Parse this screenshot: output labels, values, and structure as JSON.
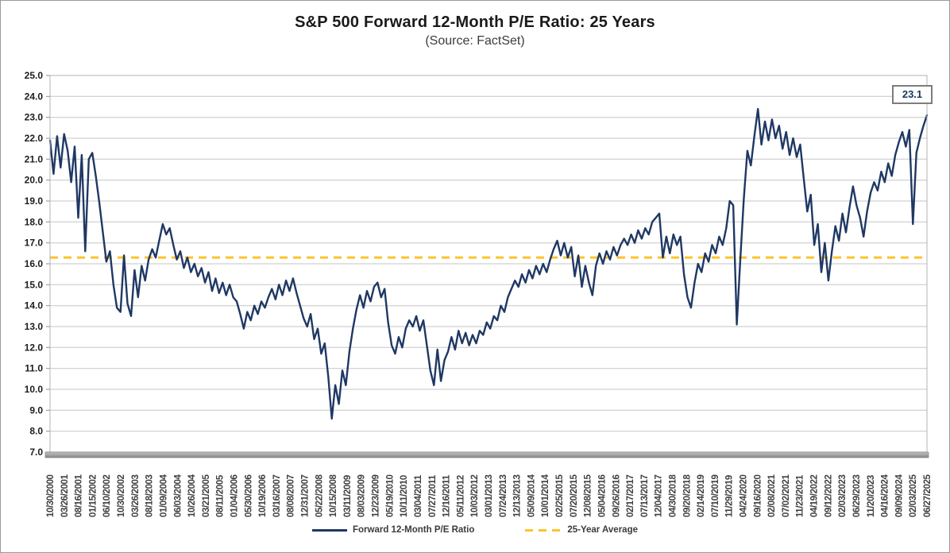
{
  "chart_data": {
    "type": "line",
    "title": "S&P 500 Forward 12-Month P/E Ratio: 25 Years",
    "subtitle": "(Source: FactSet)",
    "ylim": [
      7.0,
      25.0
    ],
    "grid": true,
    "legend_position": "bottom",
    "last_value_label": "23.1",
    "y_tick_labels": [
      "25.0",
      "24.0",
      "23.0",
      "22.0",
      "21.0",
      "20.0",
      "19.0",
      "18.0",
      "17.0",
      "16.0",
      "15.0",
      "14.0",
      "13.0",
      "12.0",
      "11.0",
      "10.0",
      "9.0",
      "8.0",
      "7.0"
    ],
    "x_labels": [
      "10/30/2000",
      "03/26/2001",
      "08/16/2001",
      "01/15/2002",
      "06/10/2002",
      "10/30/2002",
      "03/26/2003",
      "08/18/2003",
      "01/09/2004",
      "06/03/2004",
      "10/26/2004",
      "03/21/2005",
      "08/11/2005",
      "01/04/2006",
      "05/30/2006",
      "10/19/2006",
      "03/16/2007",
      "08/08/2007",
      "12/31/2007",
      "05/22/2008",
      "10/15/2008",
      "03/11/2009",
      "08/03/2009",
      "12/23/2009",
      "05/19/2010",
      "10/11/2010",
      "03/04/2011",
      "07/27/2011",
      "12/16/2011",
      "05/11/2012",
      "10/03/2012",
      "03/01/2013",
      "07/24/2013",
      "12/13/2013",
      "05/09/2014",
      "10/01/2014",
      "02/25/2015",
      "07/20/2015",
      "12/08/2015",
      "05/04/2016",
      "09/26/2016",
      "02/17/2017",
      "07/13/2017",
      "12/04/2017",
      "04/30/2018",
      "09/20/2018",
      "02/14/2019",
      "07/10/2019",
      "11/29/2019",
      "04/24/2020",
      "09/16/2020",
      "02/08/2021",
      "07/02/2021",
      "11/23/2021",
      "04/19/2022",
      "09/12/2022",
      "02/03/2023",
      "06/29/2023",
      "11/20/2023",
      "04/16/2024",
      "09/09/2024",
      "02/03/2025",
      "06/27/2025"
    ],
    "series": [
      {
        "name": "Forward 12-Month P/E Ratio",
        "color": "#1f3864",
        "values": [
          21.9,
          20.3,
          22.1,
          20.6,
          22.2,
          21.4,
          19.9,
          21.6,
          18.2,
          21.2,
          16.6,
          21.0,
          21.3,
          20.2,
          18.9,
          17.5,
          16.1,
          16.6,
          15.0,
          13.9,
          13.7,
          16.4,
          14.1,
          13.5,
          15.7,
          14.4,
          15.9,
          15.2,
          16.2,
          16.7,
          16.3,
          17.1,
          17.9,
          17.4,
          17.7,
          16.9,
          16.2,
          16.6,
          15.8,
          16.3,
          15.6,
          16.0,
          15.4,
          15.8,
          15.1,
          15.6,
          14.7,
          15.3,
          14.6,
          15.1,
          14.5,
          15.0,
          14.4,
          14.2,
          13.6,
          12.9,
          13.7,
          13.3,
          14.0,
          13.6,
          14.2,
          13.9,
          14.4,
          14.8,
          14.3,
          15.0,
          14.5,
          15.2,
          14.7,
          15.3,
          14.6,
          14.0,
          13.4,
          13.0,
          13.6,
          12.4,
          12.9,
          11.7,
          12.2,
          10.6,
          8.6,
          10.2,
          9.3,
          10.9,
          10.2,
          11.8,
          12.9,
          13.8,
          14.5,
          13.9,
          14.7,
          14.2,
          14.9,
          15.1,
          14.4,
          14.8,
          13.2,
          12.1,
          11.7,
          12.5,
          12.0,
          12.9,
          13.3,
          13.0,
          13.5,
          12.8,
          13.3,
          12.1,
          10.9,
          10.2,
          11.9,
          10.4,
          11.4,
          11.8,
          12.5,
          11.9,
          12.8,
          12.2,
          12.7,
          12.1,
          12.6,
          12.2,
          12.8,
          12.6,
          13.2,
          12.9,
          13.5,
          13.3,
          14.0,
          13.7,
          14.4,
          14.8,
          15.2,
          14.9,
          15.5,
          15.1,
          15.7,
          15.3,
          15.9,
          15.5,
          16.0,
          15.6,
          16.2,
          16.7,
          17.1,
          16.4,
          17.0,
          16.3,
          16.8,
          15.4,
          16.4,
          14.9,
          15.9,
          15.1,
          14.5,
          15.9,
          16.5,
          16.0,
          16.6,
          16.2,
          16.8,
          16.4,
          16.9,
          17.2,
          16.9,
          17.4,
          17.0,
          17.6,
          17.2,
          17.7,
          17.4,
          18.0,
          18.2,
          18.4,
          16.3,
          17.3,
          16.5,
          17.4,
          16.9,
          17.3,
          15.5,
          14.4,
          13.9,
          15.1,
          16.0,
          15.6,
          16.5,
          16.1,
          16.9,
          16.5,
          17.3,
          16.9,
          17.7,
          19.0,
          18.8,
          13.1,
          16.2,
          19.1,
          21.4,
          20.7,
          22.1,
          23.4,
          21.7,
          22.8,
          21.9,
          22.9,
          22.0,
          22.6,
          21.5,
          22.3,
          21.2,
          22.0,
          21.1,
          21.7,
          20.1,
          18.5,
          19.3,
          16.9,
          17.9,
          15.6,
          17.0,
          15.2,
          16.6,
          17.8,
          17.1,
          18.4,
          17.5,
          18.7,
          19.7,
          18.8,
          18.2,
          17.3,
          18.5,
          19.4,
          19.9,
          19.5,
          20.4,
          19.9,
          20.8,
          20.2,
          21.2,
          21.8,
          22.3,
          21.6,
          22.4,
          17.9,
          21.3,
          22.0,
          22.6,
          23.1
        ]
      }
    ],
    "average": {
      "name": "25-Year Average",
      "value": 16.3,
      "color": "#fdc32b",
      "style": "dashed"
    }
  }
}
